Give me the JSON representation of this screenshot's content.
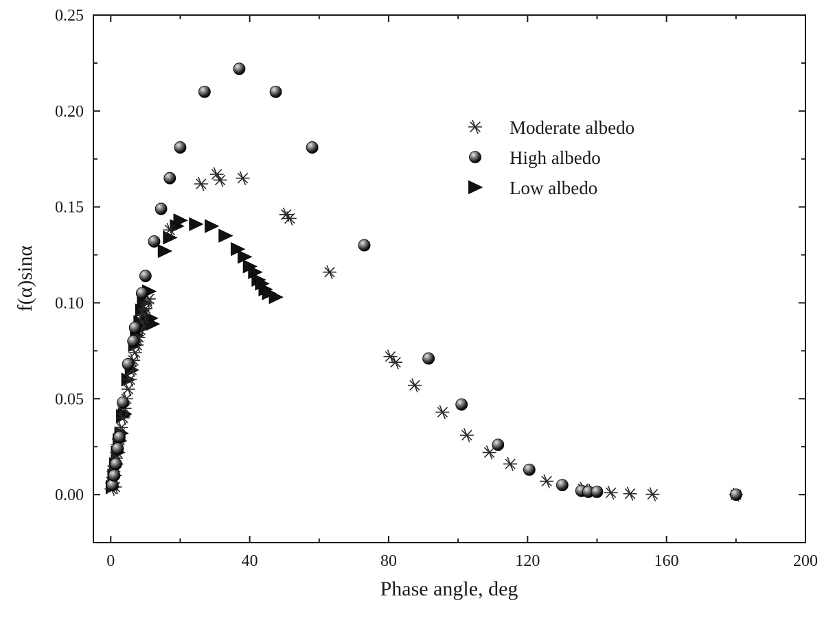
{
  "chart_data": {
    "type": "scatter",
    "title": "",
    "xlabel": "Phase angle, deg",
    "ylabel": "f(α)sinα",
    "xlim": [
      -5,
      200
    ],
    "ylim": [
      -0.025,
      0.25
    ],
    "xticks": [
      0,
      40,
      80,
      120,
      160,
      200
    ],
    "xtick_labels": [
      "0",
      "40",
      "80",
      "120",
      "160",
      "200"
    ],
    "yticks": [
      0.0,
      0.05,
      0.1,
      0.15,
      0.2,
      0.25
    ],
    "ytick_labels": [
      "0.00",
      "0.05",
      "0.10",
      "0.15",
      "0.20",
      "0.25"
    ],
    "grid": false,
    "legend_position": "top-right",
    "series": [
      {
        "name": "Moderate albedo",
        "marker": "asterisk",
        "color": "#2a2a2a",
        "points": [
          [
            0.2,
            0.003
          ],
          [
            0.4,
            0.006
          ],
          [
            0.6,
            0.009
          ],
          [
            0.8,
            0.012
          ],
          [
            1.0,
            0.015
          ],
          [
            1.2,
            0.004
          ],
          [
            1.5,
            0.019
          ],
          [
            1.8,
            0.022
          ],
          [
            2.0,
            0.026
          ],
          [
            2.3,
            0.029
          ],
          [
            2.6,
            0.032
          ],
          [
            3.0,
            0.035
          ],
          [
            3.5,
            0.04
          ],
          [
            4.0,
            0.045
          ],
          [
            4.5,
            0.05
          ],
          [
            5.0,
            0.055
          ],
          [
            5.5,
            0.06
          ],
          [
            6.0,
            0.065
          ],
          [
            6.5,
            0.07
          ],
          [
            7.0,
            0.074
          ],
          [
            7.5,
            0.078
          ],
          [
            8.0,
            0.082
          ],
          [
            8.5,
            0.086
          ],
          [
            9.0,
            0.09
          ],
          [
            9.5,
            0.094
          ],
          [
            10.0,
            0.097
          ],
          [
            10.5,
            0.1
          ],
          [
            11.0,
            0.102
          ],
          [
            17.0,
            0.138
          ],
          [
            26.0,
            0.162
          ],
          [
            30.5,
            0.167
          ],
          [
            31.5,
            0.164
          ],
          [
            38.0,
            0.165
          ],
          [
            50.5,
            0.146
          ],
          [
            51.5,
            0.144
          ],
          [
            63.0,
            0.116
          ],
          [
            80.5,
            0.072
          ],
          [
            82.0,
            0.069
          ],
          [
            87.5,
            0.057
          ],
          [
            95.5,
            0.043
          ],
          [
            102.5,
            0.031
          ],
          [
            109.0,
            0.022
          ],
          [
            115.0,
            0.016
          ],
          [
            125.5,
            0.007
          ],
          [
            136.0,
            0.003
          ],
          [
            138.5,
            0.002
          ],
          [
            144.0,
            0.001
          ],
          [
            149.5,
            0.0005
          ],
          [
            156.0,
            0.0002
          ],
          [
            180.0,
            0.0
          ]
        ]
      },
      {
        "name": "High albedo",
        "marker": "circle",
        "color": "#1a1a1a",
        "points": [
          [
            0.5,
            0.005
          ],
          [
            1.0,
            0.01
          ],
          [
            1.5,
            0.016
          ],
          [
            2.0,
            0.024
          ],
          [
            2.5,
            0.03
          ],
          [
            3.5,
            0.048
          ],
          [
            5.0,
            0.068
          ],
          [
            6.5,
            0.08
          ],
          [
            7.0,
            0.087
          ],
          [
            9.0,
            0.105
          ],
          [
            10.0,
            0.114
          ],
          [
            12.5,
            0.132
          ],
          [
            14.5,
            0.149
          ],
          [
            17.0,
            0.165
          ],
          [
            20.0,
            0.181
          ],
          [
            27.0,
            0.21
          ],
          [
            37.0,
            0.222
          ],
          [
            47.5,
            0.21
          ],
          [
            58.0,
            0.181
          ],
          [
            73.0,
            0.13
          ],
          [
            91.5,
            0.071
          ],
          [
            101.0,
            0.047
          ],
          [
            111.5,
            0.026
          ],
          [
            120.5,
            0.013
          ],
          [
            130.0,
            0.005
          ],
          [
            135.5,
            0.002
          ],
          [
            137.5,
            0.0015
          ],
          [
            140.0,
            0.0015
          ],
          [
            180.0,
            0.0
          ]
        ]
      },
      {
        "name": "Low albedo",
        "marker": "triangle-right",
        "color": "#111111",
        "points": [
          [
            0.5,
            0.004
          ],
          [
            1.0,
            0.01
          ],
          [
            1.5,
            0.016
          ],
          [
            2.0,
            0.022
          ],
          [
            2.5,
            0.028
          ],
          [
            3.0,
            0.032
          ],
          [
            3.5,
            0.041
          ],
          [
            4.0,
            0.042
          ],
          [
            5.0,
            0.06
          ],
          [
            6.0,
            0.065
          ],
          [
            7.0,
            0.078
          ],
          [
            7.5,
            0.083
          ],
          [
            8.0,
            0.086
          ],
          [
            8.5,
            0.09
          ],
          [
            9.0,
            0.096
          ],
          [
            9.5,
            0.1
          ],
          [
            10.0,
            0.088
          ],
          [
            10.5,
            0.091
          ],
          [
            11.0,
            0.106
          ],
          [
            11.5,
            0.092
          ],
          [
            12.0,
            0.089
          ],
          [
            15.5,
            0.127
          ],
          [
            17.0,
            0.134
          ],
          [
            19.0,
            0.14
          ],
          [
            20.0,
            0.143
          ],
          [
            24.5,
            0.141
          ],
          [
            29.0,
            0.14
          ],
          [
            33.0,
            0.135
          ],
          [
            36.5,
            0.128
          ],
          [
            38.5,
            0.124
          ],
          [
            40.0,
            0.119
          ],
          [
            41.5,
            0.116
          ],
          [
            42.5,
            0.112
          ],
          [
            43.5,
            0.11
          ],
          [
            44.5,
            0.107
          ],
          [
            45.5,
            0.105
          ],
          [
            47.5,
            0.103
          ]
        ]
      }
    ]
  }
}
